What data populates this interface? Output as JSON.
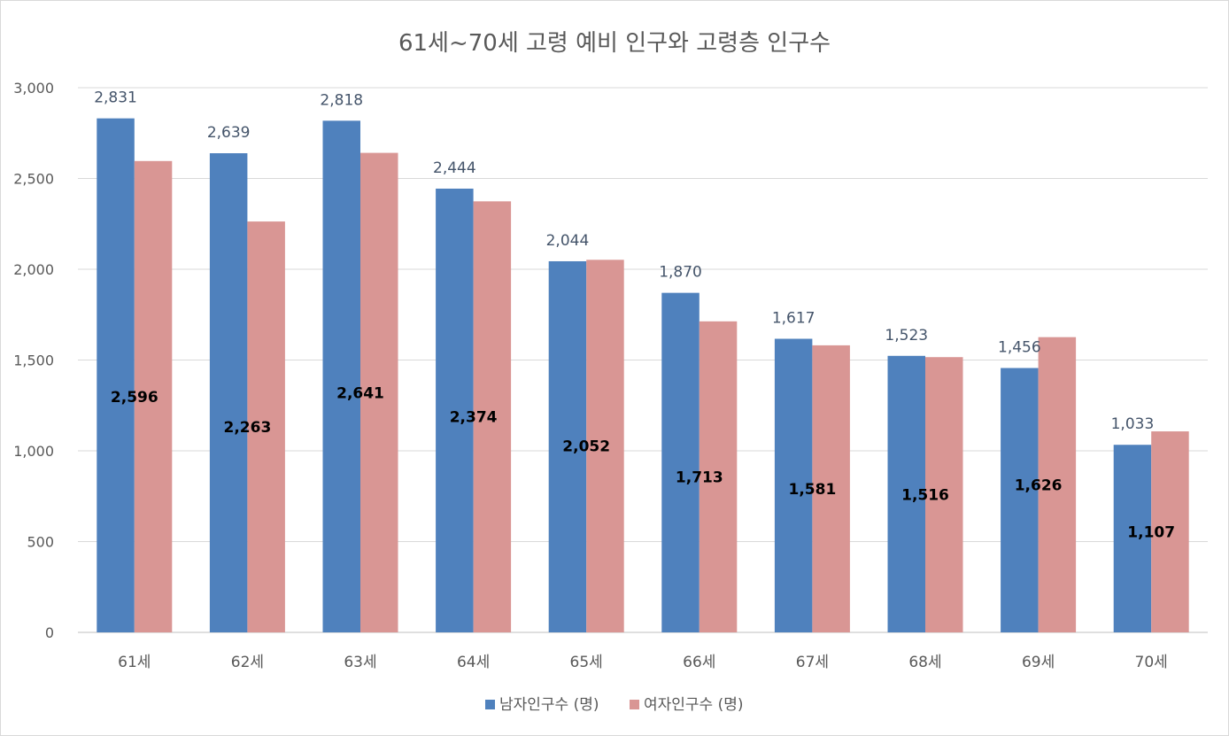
{
  "chart_data": {
    "type": "bar",
    "title": "61세~70세 고령 예비 인구와 고령층 인구수",
    "categories": [
      "61세",
      "62세",
      "63세",
      "64세",
      "65세",
      "66세",
      "67세",
      "68세",
      "69세",
      "70세"
    ],
    "series": [
      {
        "name": "남자인구수 (명)",
        "color": "#4f81bd",
        "values": [
          2831,
          2639,
          2818,
          2444,
          2044,
          1870,
          1617,
          1523,
          1456,
          1033
        ],
        "labels": [
          "2,831",
          "2,639",
          "2,818",
          "2,444",
          "2,044",
          "1,870",
          "1,617",
          "1,523",
          "1,456",
          "1,033"
        ]
      },
      {
        "name": "여자인구수 (명)",
        "color": "#d99694",
        "values": [
          2596,
          2263,
          2641,
          2374,
          2052,
          1713,
          1581,
          1516,
          1626,
          1107
        ],
        "labels": [
          "2,596",
          "2,263",
          "2,641",
          "2,374",
          "2,052",
          "1,713",
          "1,581",
          "1,516",
          "1,626",
          "1,107"
        ]
      }
    ],
    "ylim": [
      0,
      3000
    ],
    "yticks": [
      0,
      500,
      1000,
      1500,
      2000,
      2500,
      3000
    ],
    "ytick_labels": [
      "0",
      "500",
      "1,000",
      "1,500",
      "2,000",
      "2,500",
      "3,000"
    ],
    "grid": true,
    "legend_position": "bottom"
  }
}
